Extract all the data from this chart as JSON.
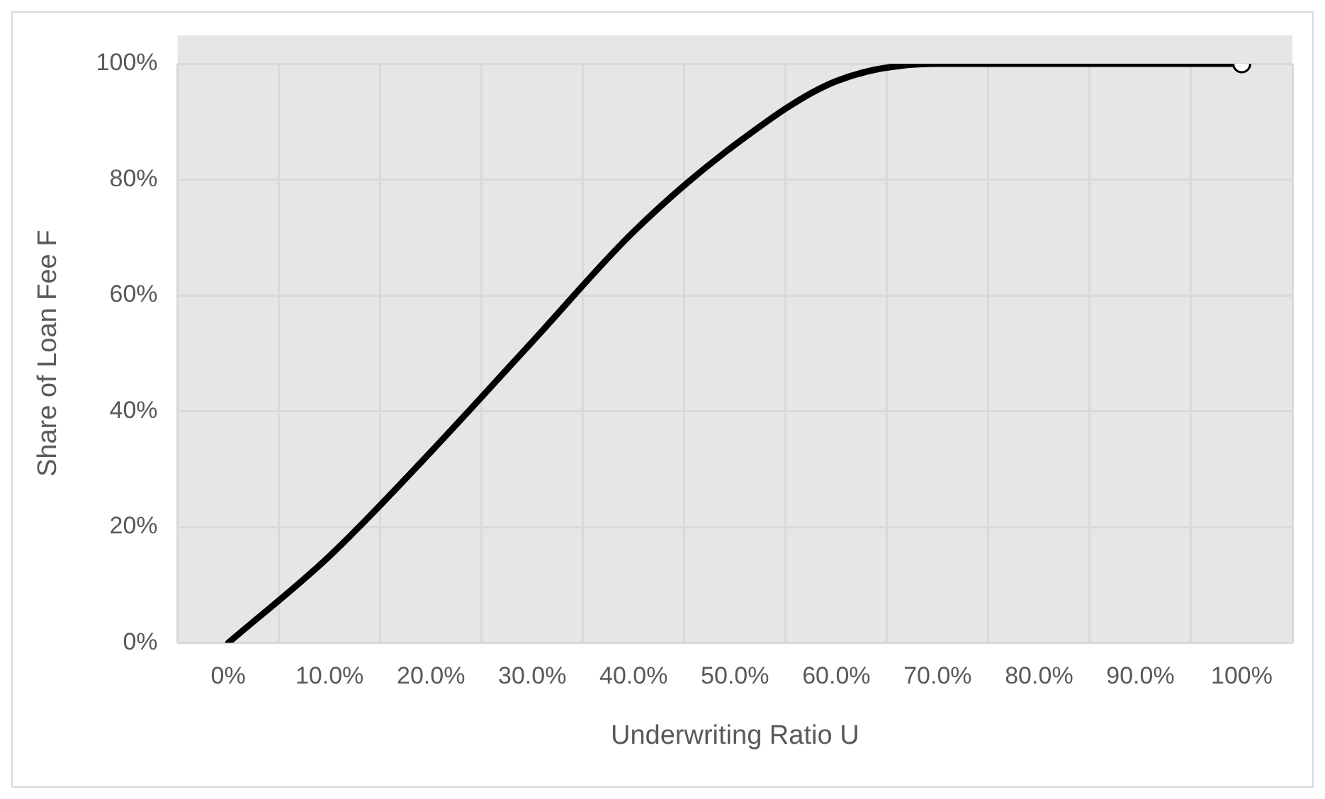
{
  "chart_data": {
    "type": "line",
    "xlabel": "Underwriting Ratio U",
    "ylabel": "Share of Loan Fee F",
    "categories": [
      "0%",
      "10.0%",
      "20.0%",
      "30.0%",
      "40.0%",
      "50.0%",
      "60.0%",
      "70.0%",
      "80.0%",
      "90.0%",
      "100%"
    ],
    "series": [
      {
        "color": "#000000",
        "values": [
          0,
          15,
          33,
          52,
          71,
          86,
          97,
          100,
          100,
          100,
          100
        ]
      }
    ],
    "ylim": [
      0,
      100
    ],
    "yticks": [
      {
        "value": 0,
        "label": "0%"
      },
      {
        "value": 20,
        "label": "20%"
      },
      {
        "value": 40,
        "label": "40%"
      },
      {
        "value": 60,
        "label": "60%"
      },
      {
        "value": 80,
        "label": "80%"
      },
      {
        "value": 100,
        "label": "100%"
      }
    ],
    "grid": true,
    "legend": false
  }
}
